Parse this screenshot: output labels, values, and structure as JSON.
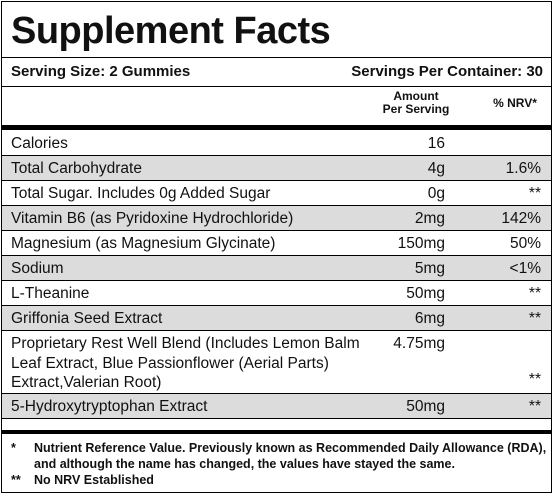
{
  "title": "Supplement Facts",
  "serving_size": "Serving Size: 2 Gummies",
  "servings_per_container": "Servings Per Container: 30",
  "header": {
    "amount_line1": "Amount",
    "amount_line2": "Per Serving",
    "nrv": "% NRV*"
  },
  "rows": [
    {
      "name": "Calories",
      "amount": "16",
      "nrv": "",
      "shaded": false
    },
    {
      "name": "Total Carbohydrate",
      "amount": "4g",
      "nrv": "1.6%",
      "shaded": true
    },
    {
      "name": "Total Sugar. Includes 0g Added Sugar",
      "amount": "0g",
      "nrv": "**",
      "shaded": false
    },
    {
      "name": "Vitamin B6 (as Pyridoxine Hydrochloride)",
      "amount": "2mg",
      "nrv": "142%",
      "shaded": true
    },
    {
      "name": "Magnesium (as Magnesium Glycinate)",
      "amount": "150mg",
      "nrv": "50%",
      "shaded": false
    },
    {
      "name": "Sodium",
      "amount": "5mg",
      "nrv": "<1%",
      "shaded": true
    },
    {
      "name": "L-Theanine",
      "amount": "50mg",
      "nrv": "**",
      "shaded": false
    },
    {
      "name": "Griffonia Seed Extract",
      "amount": "6mg",
      "nrv": "**",
      "shaded": true
    },
    {
      "name": "Proprietary Rest Well Blend (Includes Lemon Balm Leaf Extract, Blue Passionflower (Aerial Parts) Extract,Valerian Root)",
      "amount": "4.75mg",
      "nrv": "**",
      "shaded": false
    },
    {
      "name": "5-Hydroxytryptophan Extract",
      "amount": "50mg",
      "nrv": "**",
      "shaded": true
    }
  ],
  "footnotes": [
    {
      "mark": "*",
      "text": "Nutrient Reference Value. Previously known as Recommended Daily Allowance (RDA), and although the name has changed, the values have stayed the same."
    },
    {
      "mark": "**",
      "text": "No NRV Established"
    }
  ]
}
